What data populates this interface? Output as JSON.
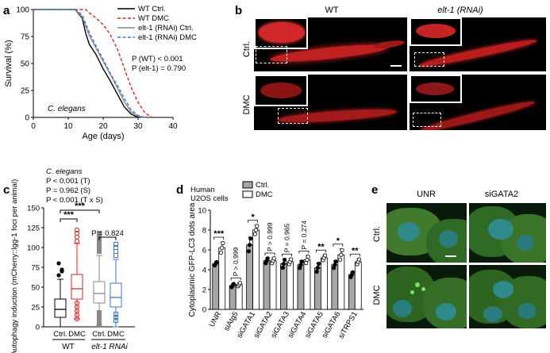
{
  "panel_letters": {
    "a": "a",
    "b": "b",
    "c": "c",
    "d": "d",
    "e": "e"
  },
  "chart_data": [
    {
      "type": "line",
      "panel": "a",
      "xlabel": "Age (days)",
      "ylabel": "Survival (%)",
      "xlim": [
        0,
        40
      ],
      "ylim": [
        0,
        100
      ],
      "xticks": [
        0,
        10,
        20,
        30,
        40
      ],
      "yticks": [
        0,
        25,
        50,
        75,
        100
      ],
      "annotation": "C. elegans",
      "stats": [
        "P (WT) < 0.001",
        "P (elt-1) = 0.790"
      ],
      "series": [
        {
          "name": "WT Ctrl.",
          "color": "#000000",
          "dash": "solid",
          "x": [
            0,
            12,
            14,
            15,
            16,
            18,
            20,
            22,
            24,
            26,
            28,
            30
          ],
          "y": [
            100,
            100,
            92,
            78,
            68,
            58,
            45,
            34,
            22,
            10,
            3,
            0
          ]
        },
        {
          "name": "WT DMC",
          "color": "#e8231f",
          "dash": "dashed",
          "x": [
            0,
            15,
            16,
            18,
            20,
            22,
            24,
            26,
            28,
            30,
            32,
            34
          ],
          "y": [
            100,
            100,
            97,
            92,
            86,
            77,
            64,
            46,
            28,
            14,
            4,
            0
          ]
        },
        {
          "name": "elt-1 (RNAi) Ctrl.",
          "color": "#888888",
          "dash": "solid",
          "x": [
            0,
            12,
            14,
            16,
            18,
            20,
            22,
            24,
            26,
            28,
            30,
            32
          ],
          "y": [
            100,
            100,
            93,
            76,
            64,
            52,
            40,
            28,
            15,
            5,
            1,
            0
          ]
        },
        {
          "name": "elt-1 (RNAi) DMC",
          "color": "#3a7bd5",
          "dash": "dashed",
          "x": [
            0,
            12,
            14,
            16,
            18,
            20,
            22,
            24,
            26,
            28,
            30,
            32
          ],
          "y": [
            100,
            100,
            95,
            79,
            66,
            54,
            41,
            30,
            18,
            7,
            2,
            0
          ]
        }
      ]
    },
    {
      "type": "box",
      "panel": "c",
      "ylabel": "Autophagy induction (mCherry::lgg-1 foci per animal)",
      "ylim": [
        0,
        150
      ],
      "yticks": [
        0,
        25,
        50,
        75,
        100,
        125,
        150
      ],
      "stats_header": [
        "C. elegans",
        "P < 0.001 (T)",
        "P = 0.962 (S)",
        "P < 0.001 (T x S)"
      ],
      "categories": [
        "Ctrl.",
        "DMC",
        "Ctrl.",
        "DMC"
      ],
      "groups": [
        "WT",
        "elt-1 RNAi"
      ],
      "boxes": [
        {
          "q1": 12,
          "median": 22,
          "q3": 35,
          "min": 0,
          "max": 60,
          "color": "#000000",
          "outliers": [
            65,
            72,
            80,
            70
          ]
        },
        {
          "q1": 35,
          "median": 48,
          "q3": 66,
          "min": 10,
          "max": 105,
          "color": "#e8231f",
          "outliers": [
            108,
            113,
            118,
            122,
            10,
            15,
            20,
            25,
            30
          ]
        },
        {
          "q1": 30,
          "median": 42,
          "q3": 57,
          "min": 2,
          "max": 90,
          "color": "#888888",
          "outliers": [
            95,
            100,
            103,
            108,
            112,
            118,
            2,
            6,
            10,
            14,
            18
          ]
        },
        {
          "q1": 25,
          "median": 37,
          "q3": 55,
          "min": 0,
          "max": 85,
          "color": "#3a7bd5",
          "outliers": [
            90,
            95,
            100,
            104,
            8,
            12,
            16
          ]
        }
      ],
      "significance": [
        {
          "pair": [
            0,
            1
          ],
          "label": "***"
        },
        {
          "pair": [
            0,
            2
          ],
          "label": "***"
        },
        {
          "pair": [
            2,
            3
          ],
          "label": "P = 0.824"
        }
      ]
    },
    {
      "type": "bar",
      "panel": "d",
      "ylabel": "Cytoplasmic GFP-LC3 dots area",
      "ylim": [
        0,
        10
      ],
      "yticks": [
        0,
        2,
        4,
        6,
        8,
        10
      ],
      "legend_title": [
        "Human",
        "U2OS cells"
      ],
      "series": [
        {
          "name": "Ctrl.",
          "color": "#a6a6a6",
          "values": [
            4.6,
            2.4,
            6.5,
            4.9,
            4.6,
            4.5,
            4.2,
            4.5,
            3.5
          ],
          "errors": [
            0.2,
            0.2,
            0.8,
            0.3,
            0.5,
            0.4,
            0.5,
            0.4,
            0.3
          ]
        },
        {
          "name": "DMC",
          "color": "#ffffff",
          "values": [
            6.2,
            2.5,
            8.0,
            4.9,
            4.8,
            5.0,
            5.2,
            5.5,
            4.8
          ],
          "errors": [
            0.6,
            0.2,
            0.5,
            0.3,
            0.3,
            0.4,
            0.3,
            0.6,
            0.3
          ]
        }
      ],
      "categories": [
        "UNR",
        "siAtg5",
        "siGATA1",
        "siGATA2",
        "siGATA3",
        "siGATA4",
        "siGATA5",
        "siGATA6",
        "siTRPS1"
      ],
      "significance": [
        "***",
        "P > 0.999",
        "*",
        "P > 0.999",
        "P = 0.965",
        "P = 0.274",
        "**",
        "*",
        "**"
      ]
    }
  ],
  "panel_b": {
    "col_labels": [
      "WT",
      "elt-1 (RNAi)"
    ],
    "row_labels": [
      "Ctrl.",
      "DMC"
    ]
  },
  "panel_e": {
    "col_labels": [
      "UNR",
      "siGATA2"
    ],
    "row_labels": [
      "Ctrl.",
      "DMC"
    ]
  }
}
